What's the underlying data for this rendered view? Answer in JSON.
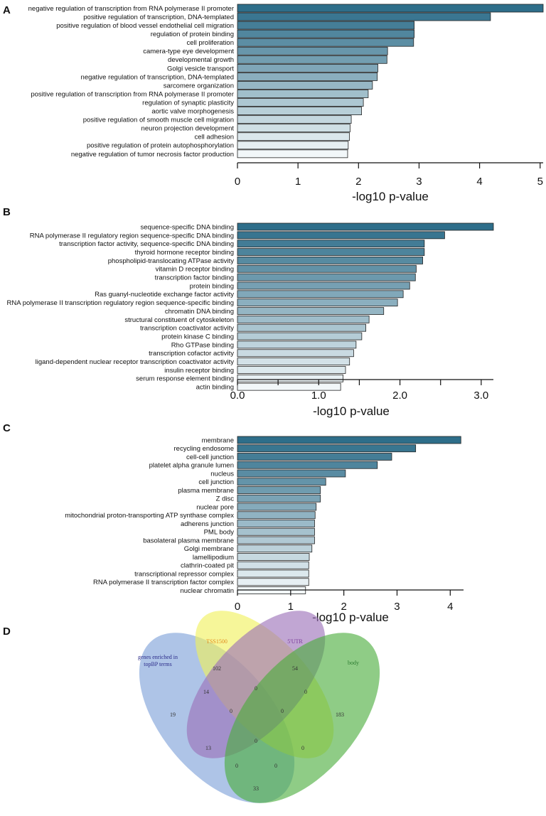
{
  "chart_data": [
    {
      "panel": "A",
      "type": "bar",
      "orientation": "horizontal",
      "xlabel": "-log10 p-value",
      "xlim": [
        0,
        5.05
      ],
      "ticks": [
        "0",
        "1",
        "2",
        "3",
        "4",
        "5"
      ],
      "tick_values": [
        0,
        1,
        2,
        3,
        4,
        5
      ],
      "categories": [
        "negative regulation of transcription from RNA polymerase II promoter",
        "positive regulation of transcription, DNA-templated",
        "positive regulation of blood vessel endothelial cell migration",
        "regulation of protein binding",
        "cell proliferation",
        "camera-type eye development",
        "developmental growth",
        "Golgi vesicle transport",
        "negative regulation of transcription, DNA-templated",
        "sarcomere organization",
        "positive regulation of transcription from RNA polymerase II promoter",
        "regulation of synaptic plasticity",
        "aortic valve morphogenesis",
        "positive regulation of smooth muscle cell migration",
        "neuron projection development",
        "cell adhesion",
        "positive regulation of protein autophosphorylation",
        "negative regulation of tumor necrosis factor production"
      ],
      "values": [
        5.05,
        4.18,
        2.92,
        2.92,
        2.91,
        2.48,
        2.47,
        2.32,
        2.31,
        2.23,
        2.16,
        2.08,
        2.05,
        1.88,
        1.86,
        1.85,
        1.83,
        1.82
      ]
    },
    {
      "panel": "B",
      "type": "bar",
      "orientation": "horizontal",
      "xlabel": "-log10 p-value",
      "xlim": [
        0,
        3.15
      ],
      "ticks": [
        "0.0",
        "1.0",
        "2.0",
        "3.0"
      ],
      "tick_values": [
        0,
        1,
        2,
        3
      ],
      "minor_ticks": [
        0.5,
        1.5,
        2.5
      ],
      "categories": [
        "sequence-specific DNA binding",
        "RNA polymerase II regulatory region sequence-specific DNA binding",
        "transcription factor activity, sequence-specific DNA binding",
        "thyroid hormone receptor binding",
        "phospholipid-translocating ATPase activity",
        "vitamin D receptor binding",
        "transcription factor binding",
        "protein binding",
        "Ras guanyl-nucleotide exchange factor activity",
        "RNA polymerase II transcription regulatory region sequence-specific binding",
        "chromatin DNA binding",
        "structural constituent of cytoskeleton",
        "transcription coactivator activity",
        "protein kinase C binding",
        "Rho GTPase binding",
        "transcription cofactor activity",
        "ligand-dependent nuclear receptor transcription coactivator activity",
        "insulin receptor binding",
        "serum response element binding",
        "actin binding"
      ],
      "values": [
        3.15,
        2.55,
        2.3,
        2.3,
        2.28,
        2.2,
        2.19,
        2.12,
        2.04,
        1.97,
        1.8,
        1.62,
        1.58,
        1.53,
        1.46,
        1.43,
        1.38,
        1.33,
        1.3,
        1.27
      ]
    },
    {
      "panel": "C",
      "type": "bar",
      "orientation": "horizontal",
      "xlabel": "-log10 p-value",
      "xlim": [
        0,
        4.25
      ],
      "ticks": [
        "0",
        "1",
        "2",
        "3",
        "4"
      ],
      "tick_values": [
        0,
        1,
        2,
        3,
        4
      ],
      "categories": [
        "membrane",
        "recycling endosome",
        "cell-cell junction",
        "platelet alpha granule lumen",
        "nucleus",
        "cell junction",
        "plasma membrane",
        "Z disc",
        "nuclear pore",
        "mitochondrial proton-transporting ATP synthase complex",
        "adherens junction",
        "PML body",
        "basolateral plasma membrane",
        "Golgi membrane",
        "lamellipodium",
        "clathrin-coated pit",
        "transcriptional repressor complex",
        "RNA polymerase II transcription factor complex",
        "nuclear chromatin"
      ],
      "values": [
        4.2,
        3.35,
        2.9,
        2.63,
        2.03,
        1.66,
        1.56,
        1.56,
        1.48,
        1.46,
        1.45,
        1.45,
        1.45,
        1.4,
        1.35,
        1.34,
        1.34,
        1.34,
        1.28
      ]
    }
  ],
  "colors": {
    "bar_dark": "#2e6e8a",
    "bar_light": "#f2f7f9",
    "bar_stroke": "#222222",
    "venn_blue": "#7d9fd9",
    "venn_yellow": "#f0f05a",
    "venn_purple": "#9b70b8",
    "venn_green": "#4aad3c"
  },
  "panels": {
    "A": "A",
    "B": "B",
    "C": "C",
    "D": "D"
  },
  "venn": {
    "sets": [
      {
        "label_lines": [
          "genes enriched in",
          "topBP terms"
        ],
        "color": "#2b2b8a"
      },
      {
        "label_lines": [
          "TSS1500"
        ],
        "color": "#e08a1e"
      },
      {
        "label_lines": [
          "5'UTR"
        ],
        "color": "#7a3a9a"
      },
      {
        "label_lines": [
          "body"
        ],
        "color": "#2e7d32"
      }
    ],
    "counts": {
      "only_bp": "19",
      "only_tss": "102",
      "only_utr": "54",
      "only_body": "183",
      "bp_tss": "14",
      "tss_utr": "0",
      "utr_body": "0",
      "bp_tss_utr": "0",
      "tss_utr_body": "0",
      "bp_utr": "13",
      "all": "0",
      "bp_utr_body": "0",
      "bp_tss_body": "0",
      "tss_body": "0",
      "bp_body": "33"
    }
  }
}
